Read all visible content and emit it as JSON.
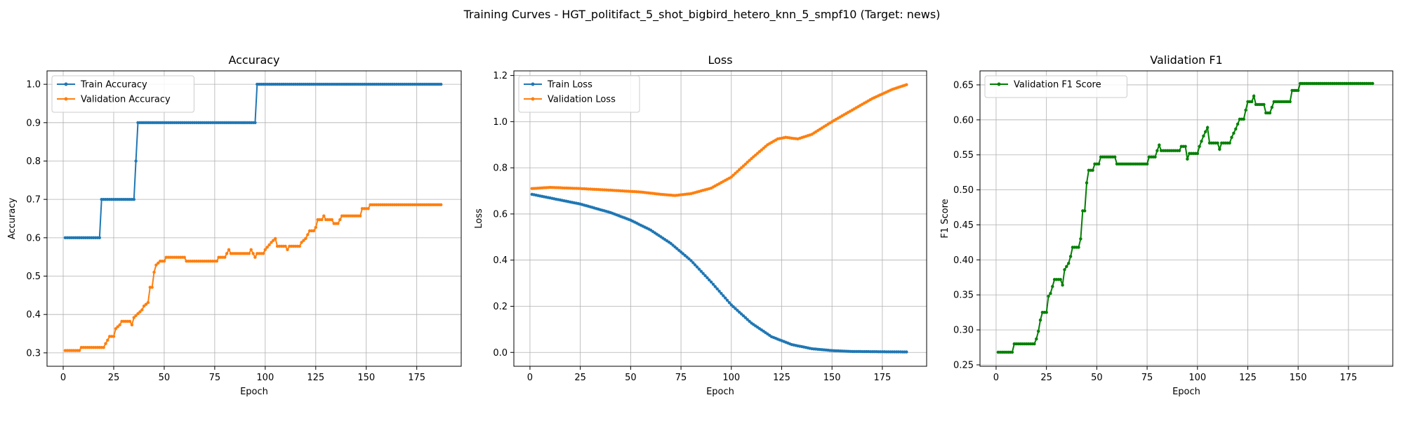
{
  "figure": {
    "suptitle": "Training Curves - HGT_politifact_5_shot_bigbird_hetero_knn_5_smpf10 (Target: news)"
  },
  "chart_data": [
    {
      "type": "line",
      "title": "Accuracy",
      "xlabel": "Epoch",
      "ylabel": "Accuracy",
      "xlim": [
        -8,
        197
      ],
      "ylim": [
        0.265,
        1.035
      ],
      "xticks": [
        0,
        25,
        50,
        75,
        100,
        125,
        150,
        175
      ],
      "yticks": [
        0.3,
        0.4,
        0.5,
        0.6,
        0.7,
        0.8,
        0.9,
        1.0
      ],
      "ytick_decimals": 1,
      "grid": true,
      "legend": "upper left",
      "x_range": [
        1,
        187
      ],
      "series": [
        {
          "name": "Train Accuracy",
          "color": "#1f77b4",
          "points": [
            [
              1,
              0.6
            ],
            [
              18,
              0.6
            ],
            [
              19,
              0.7
            ],
            [
              35,
              0.7
            ],
            [
              36,
              0.8
            ],
            [
              37,
              0.9
            ],
            [
              95,
              0.9
            ],
            [
              96,
              1.0
            ],
            [
              187,
              1.0
            ]
          ]
        },
        {
          "name": "Validation Accuracy",
          "color": "#ff7f0e",
          "points": [
            [
              1,
              0.306
            ],
            [
              8,
              0.306
            ],
            [
              9,
              0.314
            ],
            [
              20,
              0.314
            ],
            [
              21,
              0.324
            ],
            [
              22,
              0.333
            ],
            [
              23,
              0.343
            ],
            [
              25,
              0.343
            ],
            [
              26,
              0.363
            ],
            [
              28,
              0.373
            ],
            [
              29,
              0.382
            ],
            [
              33,
              0.382
            ],
            [
              34,
              0.373
            ],
            [
              35,
              0.392
            ],
            [
              37,
              0.402
            ],
            [
              39,
              0.412
            ],
            [
              40,
              0.422
            ],
            [
              42,
              0.431
            ],
            [
              43,
              0.471
            ],
            [
              44,
              0.471
            ],
            [
              45,
              0.51
            ],
            [
              46,
              0.529
            ],
            [
              48,
              0.539
            ],
            [
              50,
              0.539
            ],
            [
              51,
              0.549
            ],
            [
              60,
              0.549
            ],
            [
              61,
              0.539
            ],
            [
              76,
              0.539
            ],
            [
              77,
              0.549
            ],
            [
              80,
              0.549
            ],
            [
              81,
              0.559
            ],
            [
              82,
              0.569
            ],
            [
              83,
              0.559
            ],
            [
              92,
              0.559
            ],
            [
              93,
              0.569
            ],
            [
              95,
              0.549
            ],
            [
              96,
              0.559
            ],
            [
              99,
              0.559
            ],
            [
              100,
              0.569
            ],
            [
              103,
              0.588
            ],
            [
              105,
              0.598
            ],
            [
              106,
              0.578
            ],
            [
              110,
              0.578
            ],
            [
              111,
              0.569
            ],
            [
              112,
              0.578
            ],
            [
              117,
              0.578
            ],
            [
              118,
              0.588
            ],
            [
              120,
              0.598
            ],
            [
              122,
              0.618
            ],
            [
              124,
              0.618
            ],
            [
              125,
              0.627
            ],
            [
              126,
              0.647
            ],
            [
              128,
              0.647
            ],
            [
              129,
              0.657
            ],
            [
              130,
              0.647
            ],
            [
              133,
              0.647
            ],
            [
              134,
              0.637
            ],
            [
              136,
              0.637
            ],
            [
              137,
              0.647
            ],
            [
              138,
              0.657
            ],
            [
              147,
              0.657
            ],
            [
              148,
              0.676
            ],
            [
              151,
              0.676
            ],
            [
              152,
              0.686
            ],
            [
              187,
              0.686
            ]
          ]
        }
      ]
    },
    {
      "type": "line",
      "title": "Loss",
      "xlabel": "Epoch",
      "ylabel": "Loss",
      "xlim": [
        -8,
        197
      ],
      "ylim": [
        -0.06,
        1.22
      ],
      "xticks": [
        0,
        25,
        50,
        75,
        100,
        125,
        150,
        175
      ],
      "yticks": [
        0.0,
        0.2,
        0.4,
        0.6,
        0.8,
        1.0,
        1.2
      ],
      "ytick_decimals": 1,
      "grid": true,
      "legend": "upper left",
      "x_range": [
        1,
        187
      ],
      "series": [
        {
          "name": "Train Loss",
          "color": "#1f77b4",
          "points": [
            [
              1,
              0.685
            ],
            [
              25,
              0.643
            ],
            [
              40,
              0.606
            ],
            [
              50,
              0.573
            ],
            [
              60,
              0.53
            ],
            [
              70,
              0.472
            ],
            [
              80,
              0.398
            ],
            [
              90,
              0.305
            ],
            [
              100,
              0.206
            ],
            [
              110,
              0.127
            ],
            [
              120,
              0.068
            ],
            [
              130,
              0.034
            ],
            [
              140,
              0.016
            ],
            [
              150,
              0.008
            ],
            [
              160,
              0.004
            ],
            [
              187,
              0.002
            ]
          ]
        },
        {
          "name": "Validation Loss",
          "color": "#ff7f0e",
          "points": [
            [
              1,
              0.71
            ],
            [
              10,
              0.715
            ],
            [
              25,
              0.71
            ],
            [
              40,
              0.703
            ],
            [
              55,
              0.695
            ],
            [
              65,
              0.685
            ],
            [
              72,
              0.68
            ],
            [
              80,
              0.688
            ],
            [
              90,
              0.712
            ],
            [
              100,
              0.76
            ],
            [
              110,
              0.84
            ],
            [
              118,
              0.9
            ],
            [
              123,
              0.925
            ],
            [
              127,
              0.932
            ],
            [
              133,
              0.925
            ],
            [
              140,
              0.945
            ],
            [
              150,
              1.0
            ],
            [
              160,
              1.05
            ],
            [
              170,
              1.1
            ],
            [
              180,
              1.14
            ],
            [
              187,
              1.16
            ]
          ]
        }
      ]
    },
    {
      "type": "line",
      "title": "Validation F1",
      "xlabel": "Epoch",
      "ylabel": "F1 Score",
      "xlim": [
        -8,
        197
      ],
      "ylim": [
        0.248,
        0.67
      ],
      "xticks": [
        0,
        25,
        50,
        75,
        100,
        125,
        150,
        175
      ],
      "yticks": [
        0.25,
        0.3,
        0.35,
        0.4,
        0.45,
        0.5,
        0.55,
        0.6,
        0.65
      ],
      "ytick_decimals": 2,
      "grid": true,
      "legend": "upper left",
      "x_range": [
        1,
        187
      ],
      "series": [
        {
          "name": "Validation F1 Score",
          "color": "#008000",
          "points": [
            [
              1,
              0.268
            ],
            [
              8,
              0.268
            ],
            [
              9,
              0.28
            ],
            [
              19,
              0.28
            ],
            [
              20,
              0.287
            ],
            [
              21,
              0.298
            ],
            [
              22,
              0.314
            ],
            [
              23,
              0.325
            ],
            [
              25,
              0.325
            ],
            [
              26,
              0.348
            ],
            [
              27,
              0.352
            ],
            [
              28,
              0.362
            ],
            [
              29,
              0.372
            ],
            [
              32,
              0.372
            ],
            [
              33,
              0.364
            ],
            [
              34,
              0.386
            ],
            [
              36,
              0.395
            ],
            [
              37,
              0.405
            ],
            [
              38,
              0.418
            ],
            [
              41,
              0.418
            ],
            [
              42,
              0.43
            ],
            [
              43,
              0.47
            ],
            [
              44,
              0.47
            ],
            [
              45,
              0.51
            ],
            [
              46,
              0.528
            ],
            [
              48,
              0.528
            ],
            [
              49,
              0.537
            ],
            [
              51,
              0.537
            ],
            [
              52,
              0.547
            ],
            [
              59,
              0.547
            ],
            [
              60,
              0.537
            ],
            [
              75,
              0.537
            ],
            [
              76,
              0.547
            ],
            [
              79,
              0.547
            ],
            [
              80,
              0.556
            ],
            [
              81,
              0.564
            ],
            [
              82,
              0.556
            ],
            [
              91,
              0.556
            ],
            [
              92,
              0.562
            ],
            [
              94,
              0.562
            ],
            [
              95,
              0.544
            ],
            [
              96,
              0.552
            ],
            [
              100,
              0.552
            ],
            [
              101,
              0.562
            ],
            [
              103,
              0.577
            ],
            [
              105,
              0.589
            ],
            [
              106,
              0.567
            ],
            [
              110,
              0.567
            ],
            [
              111,
              0.558
            ],
            [
              112,
              0.567
            ],
            [
              116,
              0.567
            ],
            [
              117,
              0.575
            ],
            [
              119,
              0.587
            ],
            [
              121,
              0.601
            ],
            [
              123,
              0.601
            ],
            [
              124,
              0.614
            ],
            [
              125,
              0.626
            ],
            [
              127,
              0.626
            ],
            [
              128,
              0.634
            ],
            [
              129,
              0.622
            ],
            [
              133,
              0.622
            ],
            [
              134,
              0.61
            ],
            [
              136,
              0.61
            ],
            [
              137,
              0.618
            ],
            [
              138,
              0.626
            ],
            [
              146,
              0.626
            ],
            [
              147,
              0.642
            ],
            [
              150,
              0.642
            ],
            [
              151,
              0.652
            ],
            [
              187,
              0.652
            ]
          ]
        }
      ]
    }
  ]
}
